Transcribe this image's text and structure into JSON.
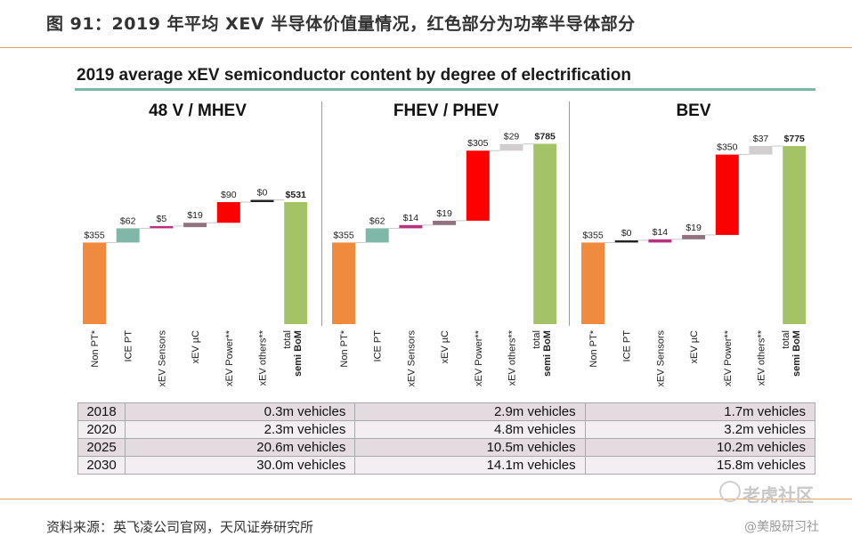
{
  "figure_title": "图 91：2019 年平均 XEV 半导体价值量情况，红色部分为功率半导体部分",
  "chart_heading": "2019 average xEV semiconductor content by degree of electrification",
  "chart_data": [
    {
      "type": "bar",
      "title": "48 V / MHEV",
      "categories": [
        "Non PT*",
        "ICE PT",
        "xEV Sensors",
        "xEV µC",
        "xEV Power**",
        "xEV others**",
        "total semi BoM"
      ],
      "values": [
        355,
        62,
        5,
        19,
        90,
        0,
        531
      ],
      "labels": [
        "$355",
        "$62",
        "$5",
        "$19",
        "$90",
        "$0",
        "$531"
      ],
      "unit": "USD"
    },
    {
      "type": "bar",
      "title": "FHEV / PHEV",
      "categories": [
        "Non PT*",
        "ICE PT",
        "xEV Sensors",
        "xEV µC",
        "xEV Power**",
        "xEV others**",
        "total semi BoM"
      ],
      "values": [
        355,
        62,
        14,
        19,
        305,
        29,
        785
      ],
      "labels": [
        "$355",
        "$62",
        "$14",
        "$19",
        "$305",
        "$29",
        "$785"
      ],
      "unit": "USD"
    },
    {
      "type": "bar",
      "title": "BEV",
      "categories": [
        "Non PT*",
        "ICE PT",
        "xEV Sensors",
        "xEV µC",
        "xEV Power**",
        "xEV others**",
        "total semi BoM"
      ],
      "values": [
        355,
        0,
        14,
        19,
        350,
        37,
        775
      ],
      "labels": [
        "$355",
        "$0",
        "$14",
        "$19",
        "$350",
        "$37",
        "$775"
      ],
      "unit": "USD"
    }
  ],
  "colors": {
    "Non PT*": "#ef8a3e",
    "ICE PT": "#7fb8a8",
    "xEV Sensors": "#b8307e",
    "xEV µC": "#93727f",
    "xEV Power**": "#ff0000",
    "xEV others**": "#d2cdcf",
    "total semi BoM": "#a4c266",
    "connector": "#c9c9c9"
  },
  "vehicle_table": [
    {
      "year": "2018",
      "values": [
        "0.3m vehicles",
        "2.9m vehicles",
        "1.7m vehicles"
      ]
    },
    {
      "year": "2020",
      "values": [
        "2.3m vehicles",
        "4.8m vehicles",
        "3.2m vehicles"
      ]
    },
    {
      "year": "2025",
      "values": [
        "20.6m vehicles",
        "10.5m vehicles",
        "10.2m vehicles"
      ]
    },
    {
      "year": "2030",
      "values": [
        "30.0m vehicles",
        "14.1m vehicles",
        "15.8m vehicles"
      ]
    }
  ],
  "source": "资料来源：英飞凌公司官网，天风证券研究所",
  "watermark": {
    "line1": "老虎社区",
    "line2": "@美股研习社"
  }
}
